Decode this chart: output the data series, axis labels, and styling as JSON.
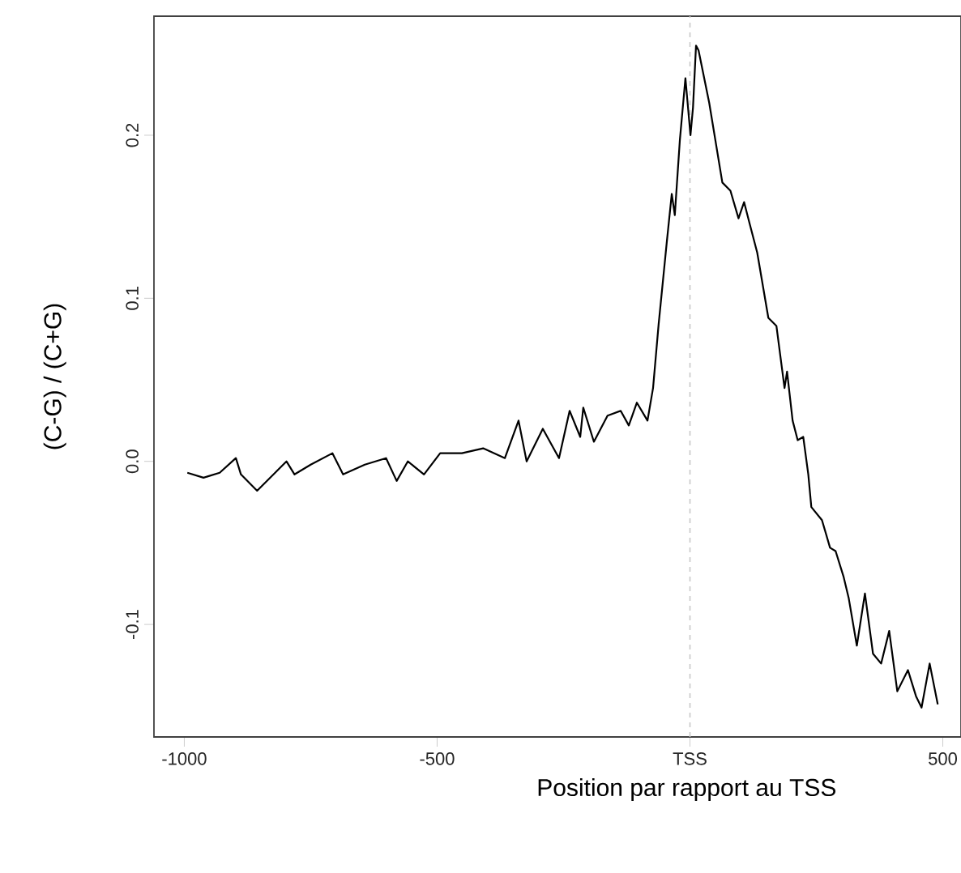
{
  "chart_data": {
    "type": "line",
    "xlabel": "Position par rapport au TSS",
    "ylabel": "(C-G) / (C+G)",
    "x": [
      -994,
      -962,
      -930,
      -898,
      -888,
      -856,
      -798,
      -782,
      -750,
      -707,
      -686,
      -643,
      -601,
      -580,
      -558,
      -526,
      -494,
      -451,
      -409,
      -366,
      -339,
      -323,
      -291,
      -259,
      -238,
      -217,
      -211,
      -190,
      -163,
      -137,
      -121,
      -105,
      -84,
      -73,
      -62,
      -46,
      -36,
      -30,
      -20,
      -9,
      1,
      6,
      12,
      17,
      38,
      64,
      80,
      96,
      107,
      117,
      133,
      155,
      171,
      187,
      192,
      203,
      213,
      224,
      234,
      240,
      261,
      277,
      288,
      304,
      314,
      330,
      346,
      362,
      378,
      394,
      410,
      431,
      447,
      458,
      474,
      490
    ],
    "series": [
      {
        "color": "#000000",
        "values": [
          -0.007,
          -0.01,
          -0.007,
          0.002,
          -0.008,
          -0.018,
          0.0,
          -0.008,
          -0.002,
          0.005,
          -0.008,
          -0.002,
          0.002,
          -0.012,
          0.0,
          -0.008,
          0.005,
          0.005,
          0.008,
          0.002,
          0.025,
          0.0,
          0.02,
          0.002,
          0.031,
          0.015,
          0.033,
          0.012,
          0.028,
          0.031,
          0.022,
          0.036,
          0.025,
          0.045,
          0.084,
          0.134,
          0.164,
          0.151,
          0.197,
          0.235,
          0.2,
          0.217,
          0.255,
          0.252,
          0.22,
          0.171,
          0.166,
          0.149,
          0.159,
          0.147,
          0.128,
          0.088,
          0.083,
          0.045,
          0.055,
          0.025,
          0.013,
          0.015,
          -0.008,
          -0.028,
          -0.036,
          -0.053,
          -0.055,
          -0.071,
          -0.084,
          -0.113,
          -0.081,
          -0.118,
          -0.124,
          -0.104,
          -0.141,
          -0.128,
          -0.144,
          -0.151,
          -0.124,
          -0.149
        ]
      }
    ],
    "xlim": [
      -1060,
      536
    ],
    "ylim": [
      -0.169,
      0.273
    ],
    "xticks": [
      -1000,
      -500,
      {
        "value": 0,
        "label": "TSS"
      },
      500
    ],
    "yticks": [
      -0.1,
      {
        "value": 0,
        "label": "0.0"
      },
      0.1,
      0.2
    ],
    "ref_lines": [
      {
        "axis": "x",
        "value": 0,
        "color": "#c8c8c8",
        "line_style": "dashed"
      }
    ],
    "grid": false,
    "marker": "none",
    "line_style": "solid"
  }
}
